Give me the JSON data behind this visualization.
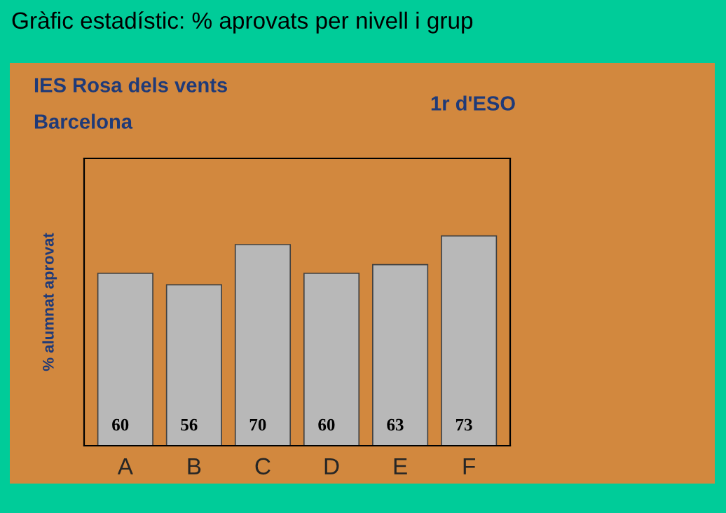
{
  "chart_data": {
    "type": "bar",
    "title": "Gràfic estadístic: % aprovats per nivell i grup",
    "ylabel": "% alumnat aprovat",
    "annotations": [
      "IES Rosa dels vents",
      "Barcelona",
      "1r d'ESO"
    ],
    "categories": [
      "A",
      "B",
      "C",
      "D",
      "E",
      "F"
    ],
    "values": [
      60,
      56,
      70,
      60,
      63,
      73
    ],
    "color": "#b8b8b8",
    "ylim": [
      0,
      100
    ],
    "tick_labels": "x",
    "data_labels": true,
    "grid": false,
    "legend": false
  }
}
